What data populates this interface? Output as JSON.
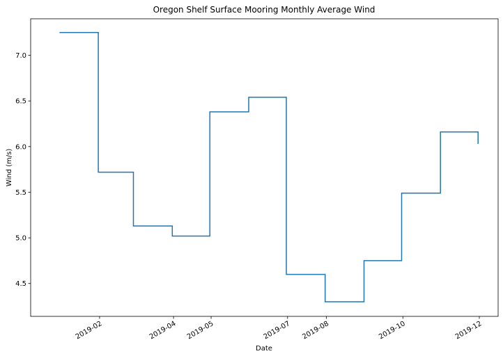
{
  "chart_data": {
    "type": "line",
    "drawstyle": "steps-post",
    "title": "Oregon Shelf Surface Mooring Monthly Average Wind",
    "xlabel": "Date",
    "ylabel": "Wind (m/s)",
    "xlim": [
      "2018-12-08",
      "2019-12-16"
    ],
    "ylim": [
      4.14,
      7.4
    ],
    "x_ticks": [
      "2019-02",
      "2019-04",
      "2019-05",
      "2019-07",
      "2019-08",
      "2019-10",
      "2019-12"
    ],
    "y_ticks": [
      "4.5",
      "5.0",
      "5.5",
      "6.0",
      "6.5",
      "7.0"
    ],
    "grid": false,
    "series": [
      {
        "color": "#1f77b4",
        "x": [
          "2018-12-31",
          "2019-01-31",
          "2019-02-28",
          "2019-03-31",
          "2019-04-30",
          "2019-05-31",
          "2019-06-30",
          "2019-07-31",
          "2019-08-31",
          "2019-09-30",
          "2019-10-31",
          "2019-11-30"
        ],
        "values": [
          7.25,
          5.72,
          5.13,
          5.02,
          6.38,
          6.54,
          4.6,
          4.3,
          4.75,
          5.49,
          6.16,
          6.03
        ]
      }
    ]
  }
}
